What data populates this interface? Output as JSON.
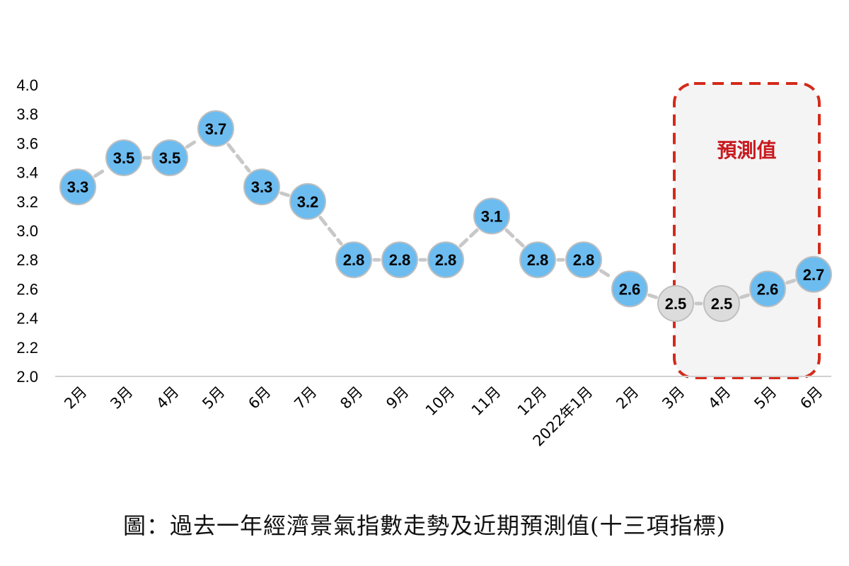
{
  "chart_data": {
    "type": "line",
    "categories": [
      "2月",
      "3月",
      "4月",
      "5月",
      "6月",
      "7月",
      "8月",
      "9月",
      "10月",
      "11月",
      "12月",
      "2022年1月",
      "2月",
      "3月",
      "4月",
      "5月",
      "6月"
    ],
    "values": [
      3.3,
      3.5,
      3.5,
      3.7,
      3.3,
      3.2,
      2.8,
      2.8,
      2.8,
      3.1,
      2.8,
      2.8,
      2.6,
      2.5,
      2.5,
      2.6,
      2.7
    ],
    "value_labels": [
      "3.3",
      "3.5",
      "3.5",
      "3.7",
      "3.3",
      "3.2",
      "2.8",
      "2.8",
      "2.8",
      "3.1",
      "2.8",
      "2.8",
      "2.6",
      "2.5",
      "2.5",
      "2.6",
      "2.7"
    ],
    "marker_colors": [
      "#6cbcf0",
      "#6cbcf0",
      "#6cbcf0",
      "#6cbcf0",
      "#6cbcf0",
      "#6cbcf0",
      "#6cbcf0",
      "#6cbcf0",
      "#6cbcf0",
      "#6cbcf0",
      "#6cbcf0",
      "#6cbcf0",
      "#6cbcf0",
      "#dcdcdc",
      "#dcdcdc",
      "#6cbcf0",
      "#6cbcf0"
    ],
    "ylim": [
      2.0,
      4.0
    ],
    "yticks": [
      "2.0",
      "2.2",
      "2.4",
      "2.6",
      "2.8",
      "3.0",
      "3.2",
      "3.4",
      "3.6",
      "3.8",
      "4.0"
    ],
    "line_color": "#c8c8c8",
    "grid": false,
    "forecast_region": {
      "label": "預測值",
      "from_category_index": 13,
      "to_category_index": 16,
      "border_color": "#d42a1a",
      "fill_color": "#f4f4f5"
    },
    "title": "",
    "xlabel": "",
    "ylabel": ""
  },
  "caption": "圖：過去一年經濟景氣指數走勢及近期預測值(十三項指標)"
}
